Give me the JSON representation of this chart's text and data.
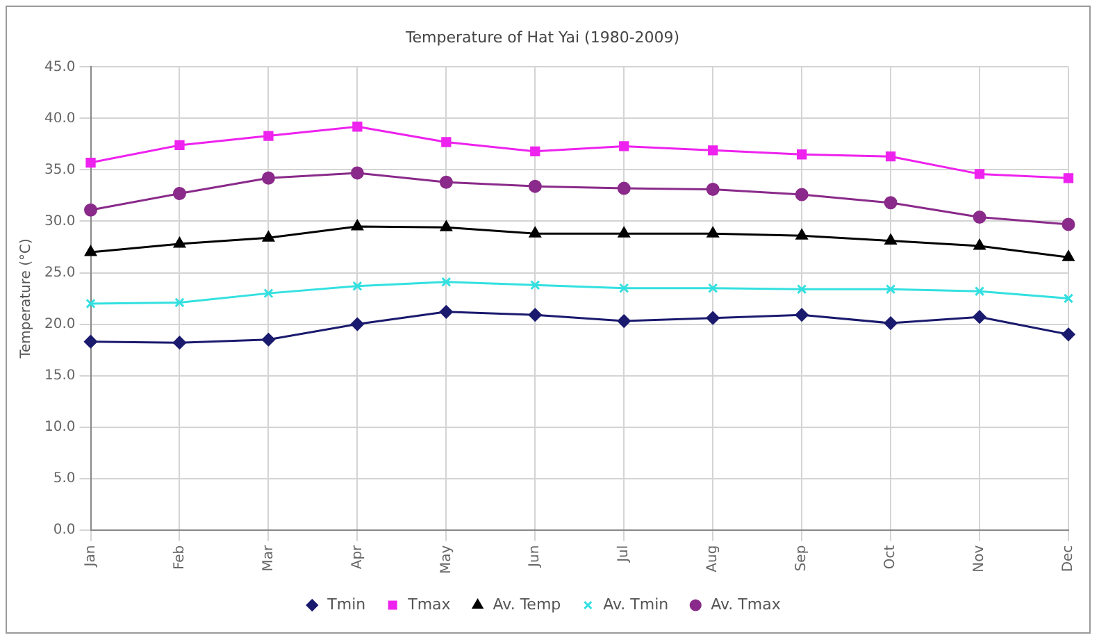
{
  "chart_data": {
    "type": "line",
    "title": "Temperature of Hat Yai (1980-2009)",
    "ylabel": "Temperature (°C)",
    "categories": [
      "Jan",
      "Feb",
      "Mar",
      "Apr",
      "May",
      "Jun",
      "Jul",
      "Aug",
      "Sep",
      "Oct",
      "Nov",
      "Dec"
    ],
    "series": [
      {
        "name": "Tmin",
        "color": "#1a1a6e",
        "marker": "diamond",
        "values": [
          18.3,
          18.2,
          18.5,
          20.0,
          21.2,
          20.9,
          20.3,
          20.6,
          20.9,
          20.1,
          20.7,
          19.0
        ]
      },
      {
        "name": "Tmax",
        "color": "#ee22ee",
        "marker": "square",
        "values": [
          35.7,
          37.4,
          38.3,
          39.2,
          37.7,
          36.8,
          37.3,
          36.9,
          36.5,
          36.3,
          34.6,
          34.2
        ]
      },
      {
        "name": "Av. Temp",
        "color": "#000000",
        "marker": "triangle",
        "values": [
          27.0,
          27.8,
          28.4,
          29.5,
          29.4,
          28.8,
          28.8,
          28.8,
          28.6,
          28.1,
          27.6,
          26.5
        ]
      },
      {
        "name": "Av. Tmin",
        "color": "#33e0e0",
        "marker": "cross",
        "values": [
          22.0,
          22.1,
          23.0,
          23.7,
          24.1,
          23.8,
          23.5,
          23.5,
          23.4,
          23.4,
          23.2,
          22.5
        ]
      },
      {
        "name": "Av. Tmax",
        "color": "#8a2a8a",
        "marker": "circle",
        "values": [
          31.1,
          32.7,
          34.2,
          34.7,
          33.8,
          33.4,
          33.2,
          33.1,
          32.6,
          31.8,
          30.4,
          29.7
        ]
      }
    ],
    "ylim": [
      0,
      45
    ],
    "yticks": [
      {
        "value": 0,
        "label": "0.0"
      },
      {
        "value": 5,
        "label": "5.0"
      },
      {
        "value": 10,
        "label": "10.0"
      },
      {
        "value": 15,
        "label": "15.0"
      },
      {
        "value": 20,
        "label": "20.0"
      },
      {
        "value": 25,
        "label": "25.0"
      },
      {
        "value": 30,
        "label": "30.0"
      },
      {
        "value": 35,
        "label": "35.0"
      },
      {
        "value": 40,
        "label": "40.0"
      },
      {
        "value": 45,
        "label": "45.0"
      }
    ],
    "grid": true,
    "legend": "bottom",
    "line_style": "solid"
  }
}
